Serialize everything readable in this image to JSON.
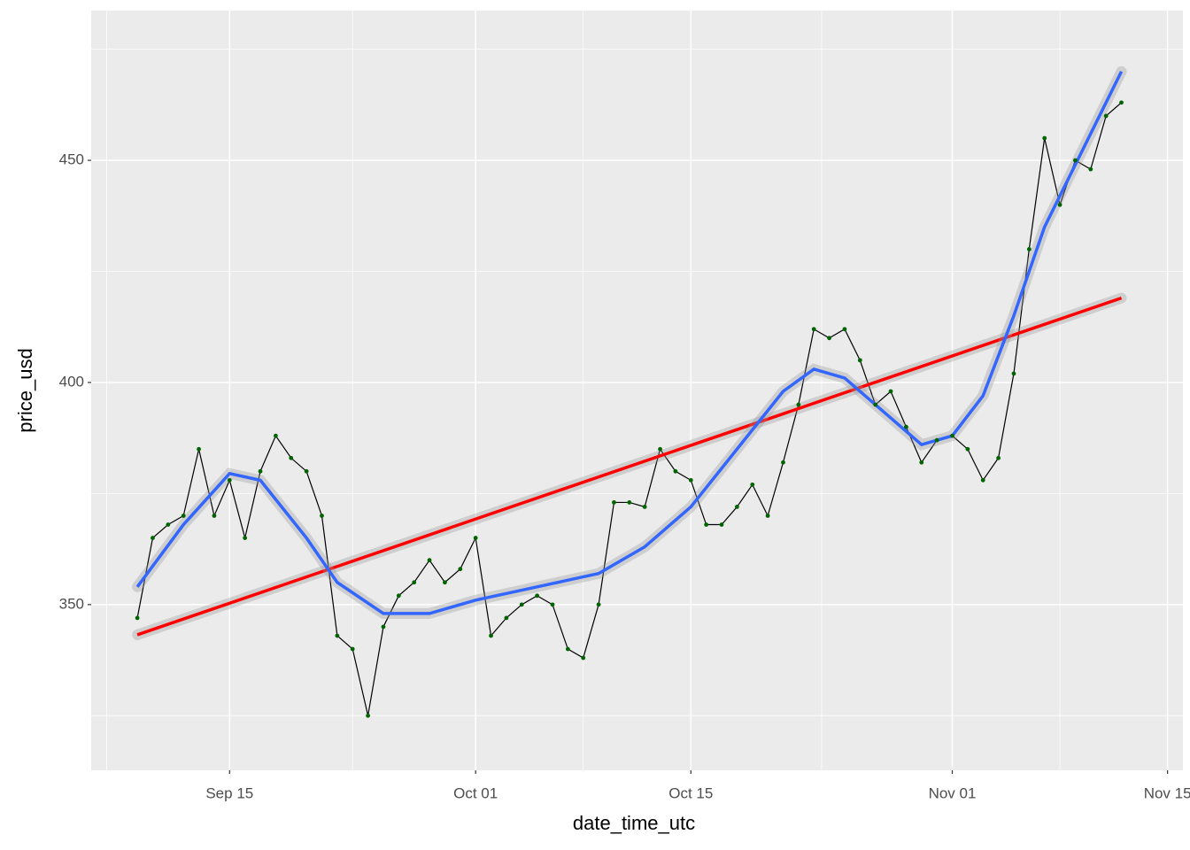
{
  "chart_data": {
    "type": "line",
    "xlabel": "date_time_utc",
    "ylabel": "price_usd",
    "xlim": [
      "Sep 06",
      "Nov 16"
    ],
    "xticks": [
      "Sep 15",
      "Oct 01",
      "Oct 15",
      "Nov 01",
      "Nov 15"
    ],
    "ylim": [
      312.7,
      483.7
    ],
    "yticks": [
      350,
      400,
      450
    ],
    "grid": true,
    "series": [
      {
        "color": "#000000",
        "marker_color": "#006400",
        "x": [
          "Sep 09",
          "Sep 10",
          "Sep 11",
          "Sep 12",
          "Sep 13",
          "Sep 14",
          "Sep 15",
          "Sep 16",
          "Sep 17",
          "Sep 18",
          "Sep 19",
          "Sep 20",
          "Sep 21",
          "Sep 22",
          "Sep 23",
          "Sep 24",
          "Sep 25",
          "Sep 26",
          "Sep 27",
          "Sep 28",
          "Sep 29",
          "Sep 30",
          "Oct 01",
          "Oct 02",
          "Oct 03",
          "Oct 04",
          "Oct 05",
          "Oct 06",
          "Oct 07",
          "Oct 08",
          "Oct 09",
          "Oct 10",
          "Oct 11",
          "Oct 12",
          "Oct 13",
          "Oct 14",
          "Oct 15",
          "Oct 16",
          "Oct 17",
          "Oct 18",
          "Oct 19",
          "Oct 20",
          "Oct 21",
          "Oct 22",
          "Oct 23",
          "Oct 24",
          "Oct 25",
          "Oct 26",
          "Oct 27",
          "Oct 28",
          "Oct 29",
          "Oct 30",
          "Oct 31",
          "Nov 01",
          "Nov 02",
          "Nov 03",
          "Nov 04",
          "Nov 05",
          "Nov 06",
          "Nov 07",
          "Nov 08",
          "Nov 09",
          "Nov 10",
          "Nov 11",
          "Nov 12"
        ],
        "values": [
          347,
          365,
          368,
          370,
          385,
          370,
          378,
          365,
          380,
          388,
          383,
          380,
          370,
          343,
          340,
          325,
          345,
          352,
          355,
          360,
          355,
          358,
          365,
          343,
          347,
          350,
          352,
          350,
          340,
          338,
          350,
          373,
          373,
          372,
          385,
          380,
          378,
          368,
          368,
          372,
          377,
          370,
          382,
          395,
          412,
          410,
          412,
          405,
          395,
          398,
          390,
          382,
          387,
          388,
          385,
          378,
          383,
          402,
          430,
          455,
          440,
          450,
          448,
          460,
          463
        ]
      },
      {
        "color": "#ff0000",
        "x": [
          "Sep 09",
          "Nov 12"
        ],
        "values": [
          343.2,
          419
        ]
      },
      {
        "color": "#3366ff",
        "x": [
          "Sep 09",
          "Sep 12",
          "Sep 15",
          "Sep 17",
          "Sep 20",
          "Sep 22",
          "Sep 25",
          "Sep 28",
          "Oct 01",
          "Oct 05",
          "Oct 09",
          "Oct 12",
          "Oct 15",
          "Oct 18",
          "Oct 21",
          "Oct 23",
          "Oct 25",
          "Oct 28",
          "Oct 30",
          "Nov 01",
          "Nov 03",
          "Nov 05",
          "Nov 07",
          "Nov 09",
          "Nov 12"
        ],
        "values": [
          354,
          368,
          379.5,
          378,
          365,
          355,
          348,
          348,
          351,
          354,
          357,
          363,
          372,
          385,
          398,
          403,
          401,
          392,
          386,
          388,
          397,
          415,
          435,
          449,
          470
        ]
      }
    ]
  }
}
